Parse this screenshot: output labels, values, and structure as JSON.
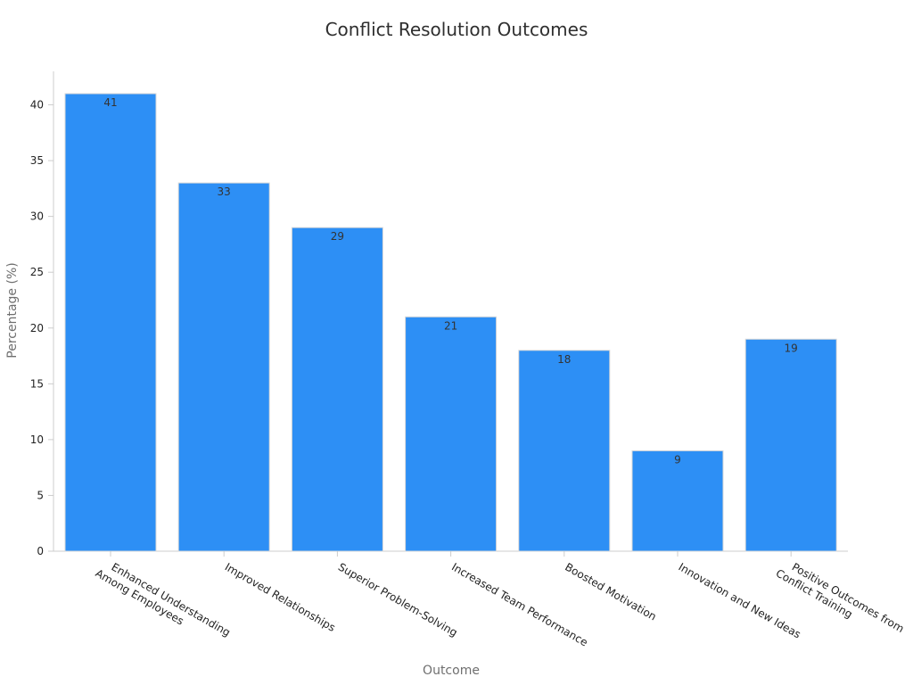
{
  "chart_data": {
    "type": "bar",
    "title": "Conflict Resolution Outcomes",
    "xlabel": "Outcome",
    "ylabel": "Percentage (%)",
    "categories": [
      [
        "Enhanced Understanding",
        "Among Employees"
      ],
      [
        "Improved Relationships"
      ],
      [
        "Superior Problem-Solving"
      ],
      [
        "Increased Team Performance"
      ],
      [
        "Boosted Motivation"
      ],
      [
        "Innovation and New Ideas"
      ],
      [
        "Positive Outcomes from",
        "Conflict Training"
      ]
    ],
    "values": [
      41,
      33,
      29,
      21,
      18,
      9,
      19
    ],
    "data_labels": [
      "41",
      "33",
      "29",
      "21",
      "18",
      "9",
      "19"
    ],
    "ylim": [
      0,
      43
    ],
    "yticks": [
      0,
      5,
      10,
      15,
      20,
      25,
      30,
      35,
      40
    ],
    "ytick_labels": [
      "0",
      "5",
      "10",
      "15",
      "20",
      "25",
      "30",
      "35",
      "40"
    ],
    "grid": false,
    "legend": "none",
    "colors": {
      "bar": "#2d8ff5",
      "axis": "#cccccc",
      "title": "#2f2f2f",
      "axis_title": "#6f6f6f"
    }
  }
}
